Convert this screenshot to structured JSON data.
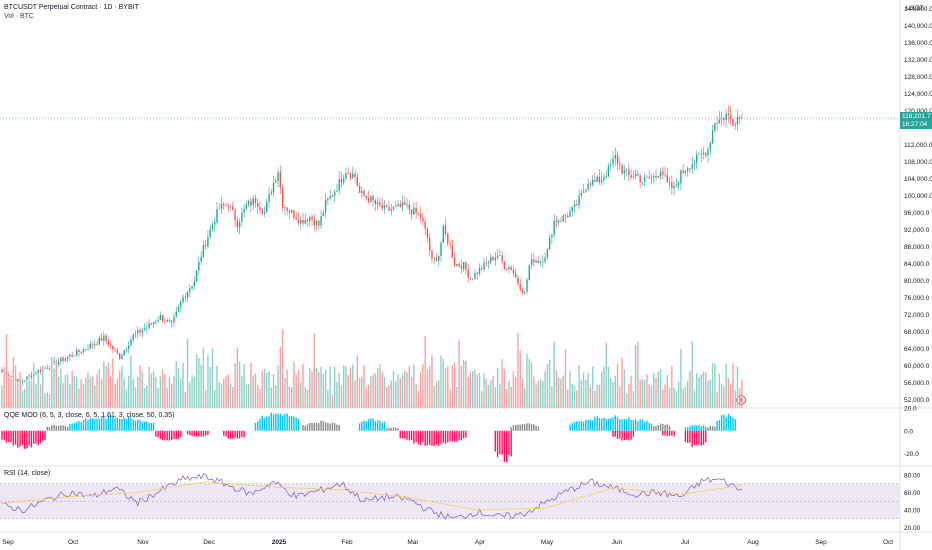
{
  "header": {
    "symbol_line": "BTCUSDT Perpetual Contract · 1D · BYBIT",
    "volume_line": "Vol · BTC",
    "qqe_line": "QQE MOD (6, 5, 3, close, 6, 5, 1.61, 3, close, 50, 0.35)",
    "rsi_line": "RSI (14, close)",
    "currency": "USDT"
  },
  "last_price": {
    "value": "118,201.7",
    "countdown": "16:27:04"
  },
  "colors": {
    "up": "#26a69a",
    "down": "#ef5350",
    "vol_up": "#8fd1c6",
    "vol_down": "#f4a3a1",
    "qqe_blue": "#00c8f0",
    "qqe_pink": "#ff1060",
    "qqe_gray": "#8a8a8a",
    "rsi_line": "#7e57c2",
    "rsi_ma": "#f4d35e",
    "rsi_band": "#ede7f6"
  },
  "chart_data": [
    {
      "type": "candlestick",
      "title": "BTCUSDT Perpetual Contract · 1D · BYBIT",
      "x_ticks": [
        "Sep",
        "Oct",
        "Nov",
        "Dec",
        "2025",
        "Feb",
        "Mar",
        "Apr",
        "May",
        "Jun",
        "Jul",
        "Aug",
        "Sep",
        "Oct"
      ],
      "y_ticks": [
        "144,000.0",
        "140,000.0",
        "136,000.0",
        "132,000.0",
        "128,000.0",
        "124,000.0",
        "120,000.0",
        "112,000.0",
        "108,000.0",
        "104,000.0",
        "100,000.0",
        "96,000.0",
        "92,000.0",
        "88,000.0",
        "84,000.0",
        "80,000.0",
        "76,000.0",
        "72,000.0",
        "68,000.0",
        "64,000.0",
        "60,000.0",
        "56,000.0",
        "52,000.0"
      ],
      "y_range": [
        50000,
        146000
      ],
      "close_anchors": [
        [
          0,
          59000
        ],
        [
          8,
          56000
        ],
        [
          15,
          58500
        ],
        [
          25,
          61000
        ],
        [
          35,
          63500
        ],
        [
          45,
          66500
        ],
        [
          52,
          62000
        ],
        [
          58,
          67000
        ],
        [
          64,
          69000
        ],
        [
          70,
          71500
        ],
        [
          75,
          69500
        ],
        [
          80,
          76000
        ],
        [
          85,
          80000
        ],
        [
          88,
          86000
        ],
        [
          92,
          92000
        ],
        [
          96,
          97000
        ],
        [
          100,
          98000
        ],
        [
          104,
          93500
        ],
        [
          108,
          97500
        ],
        [
          112,
          99000
        ],
        [
          116,
          96000
        ],
        [
          119,
          101500
        ],
        [
          122,
          106000
        ],
        [
          124,
          98000
        ],
        [
          128,
          96000
        ],
        [
          132,
          94000
        ],
        [
          136,
          95000
        ],
        [
          140,
          93000
        ],
        [
          143,
          98000
        ],
        [
          148,
          102000
        ],
        [
          152,
          106000
        ],
        [
          156,
          104500
        ],
        [
          158,
          100500
        ],
        [
          163,
          99000
        ],
        [
          166,
          97500
        ],
        [
          170,
          96500
        ],
        [
          174,
          97000
        ],
        [
          178,
          97500
        ],
        [
          181,
          96500
        ],
        [
          185,
          95000
        ],
        [
          188,
          90000
        ],
        [
          190,
          84500
        ],
        [
          193,
          86000
        ],
        [
          195,
          92000
        ],
        [
          198,
          88000
        ],
        [
          200,
          84000
        ],
        [
          204,
          83500
        ],
        [
          207,
          80500
        ],
        [
          210,
          82000
        ],
        [
          213,
          83500
        ],
        [
          216,
          85000
        ],
        [
          219,
          86000
        ],
        [
          222,
          83500
        ],
        [
          225,
          83000
        ],
        [
          228,
          79500
        ],
        [
          231,
          77000
        ],
        [
          233,
          83500
        ],
        [
          235,
          85000
        ],
        [
          238,
          84500
        ],
        [
          241,
          87000
        ],
        [
          244,
          94000
        ],
        [
          247,
          94500
        ],
        [
          250,
          95500
        ],
        [
          253,
          97000
        ],
        [
          256,
          100000
        ],
        [
          259,
          103500
        ],
        [
          262,
          103000
        ],
        [
          265,
          104000
        ],
        [
          268,
          106000
        ],
        [
          271,
          109000
        ],
        [
          274,
          106000
        ],
        [
          277,
          104500
        ],
        [
          280,
          105000
        ],
        [
          283,
          103500
        ],
        [
          286,
          104000
        ],
        [
          289,
          104500
        ],
        [
          291,
          106500
        ],
        [
          294,
          102500
        ],
        [
          297,
          101500
        ],
        [
          300,
          105000
        ],
        [
          303,
          107000
        ],
        [
          306,
          108000
        ],
        [
          309,
          109500
        ],
        [
          312,
          111000
        ],
        [
          315,
          117500
        ],
        [
          318,
          118000
        ],
        [
          320,
          119000
        ],
        [
          323,
          117500
        ],
        [
          325,
          118500
        ],
        [
          327,
          118201.7
        ]
      ],
      "n_candles": 328
    },
    {
      "type": "bar",
      "title": "Vol · BTC",
      "y_range": [
        0,
        100
      ]
    },
    {
      "type": "histogram",
      "title": "QQE MOD (6, 5, 3, close, 6, 5, 1.61, 3, close, 50, 0.35)",
      "y_ticks": [
        "20.0",
        "0.0",
        "-20.0"
      ],
      "y_range": [
        -30,
        20
      ],
      "series": [
        {
          "name": "blue_blocks",
          "ranges": [
            [
              30,
              68,
              12
            ],
            [
              112,
              132,
              15
            ],
            [
              158,
              170,
              10
            ],
            [
              251,
              288,
              12
            ],
            [
              302,
              312,
              5
            ],
            [
              316,
              325,
              14
            ]
          ]
        },
        {
          "name": "gray_blocks",
          "ranges": [
            [
              20,
              30,
              5
            ],
            [
              133,
              150,
              8
            ],
            [
              170,
              176,
              3
            ],
            [
              225,
              238,
              6
            ],
            [
              288,
              296,
              6
            ],
            [
              312,
              316,
              4
            ]
          ]
        },
        {
          "name": "pink_blocks",
          "ranges": [
            [
              0,
              20,
              -14
            ],
            [
              68,
              80,
              -8
            ],
            [
              82,
              92,
              -5
            ],
            [
              98,
              108,
              -7
            ],
            [
              176,
              206,
              -12
            ],
            [
              218,
              226,
              -25
            ],
            [
              270,
              280,
              -8
            ],
            [
              292,
              298,
              -5
            ],
            [
              302,
              312,
              -14
            ]
          ]
        }
      ]
    },
    {
      "type": "line",
      "title": "RSI (14, close)",
      "y_ticks": [
        "80.00",
        "60.00",
        "40.00",
        "20.00"
      ],
      "y_range": [
        15,
        90
      ],
      "bands": [
        30,
        50,
        70
      ],
      "series": [
        {
          "name": "rsi",
          "anchors": [
            [
              0,
              45
            ],
            [
              10,
              40
            ],
            [
              20,
              52
            ],
            [
              30,
              60
            ],
            [
              40,
              55
            ],
            [
              50,
              65
            ],
            [
              60,
              48
            ],
            [
              70,
              62
            ],
            [
              80,
              75
            ],
            [
              90,
              78
            ],
            [
              100,
              68
            ],
            [
              110,
              58
            ],
            [
              120,
              72
            ],
            [
              130,
              55
            ],
            [
              140,
              62
            ],
            [
              150,
              70
            ],
            [
              160,
              50
            ],
            [
              170,
              55
            ],
            [
              180,
              52
            ],
            [
              190,
              38
            ],
            [
              200,
              30
            ],
            [
              210,
              38
            ],
            [
              220,
              32
            ],
            [
              230,
              35
            ],
            [
              240,
              48
            ],
            [
              250,
              62
            ],
            [
              260,
              72
            ],
            [
              270,
              65
            ],
            [
              280,
              58
            ],
            [
              290,
              60
            ],
            [
              300,
              55
            ],
            [
              310,
              74
            ],
            [
              318,
              74
            ],
            [
              327,
              62
            ]
          ]
        },
        {
          "name": "rsi_ma",
          "anchors": [
            [
              0,
              48
            ],
            [
              30,
              55
            ],
            [
              60,
              60
            ],
            [
              90,
              72
            ],
            [
              120,
              66
            ],
            [
              150,
              63
            ],
            [
              180,
              54
            ],
            [
              210,
              40
            ],
            [
              240,
              42
            ],
            [
              270,
              65
            ],
            [
              300,
              58
            ],
            [
              327,
              68
            ]
          ]
        }
      ]
    }
  ]
}
